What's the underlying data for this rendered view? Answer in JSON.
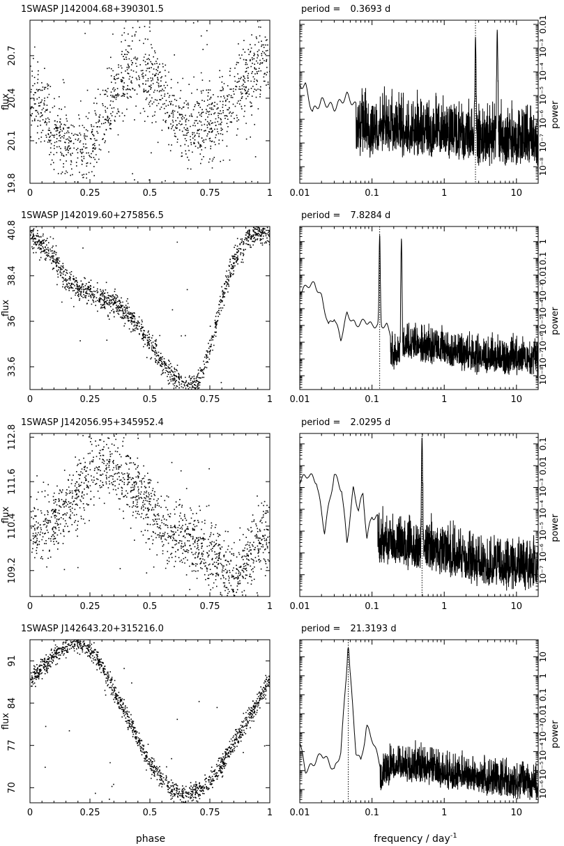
{
  "figure": {
    "x_label_left": "phase",
    "x_label_right": "frequency / day",
    "x_label_right_sup": "-1",
    "y_label_left": "flux",
    "y_label_right": "power",
    "period_prefix": "period ="
  },
  "chart_data": [
    {
      "type": "scatter",
      "id": "lc1",
      "title": "1SWASP J142004.68+390301.5",
      "xlabel": "phase",
      "ylabel": "flux",
      "xlim": [
        0,
        1
      ],
      "ylim": [
        19.8,
        20.95
      ],
      "x_ticks": [
        0,
        0.25,
        0.5,
        0.75,
        1
      ],
      "x_tick_labels": [
        "0",
        "0.25",
        "0.5",
        "0.75",
        "1"
      ],
      "y_ticks": [
        19.8,
        20.1,
        20.4,
        20.7
      ],
      "y_tick_labels": [
        "19.8",
        "20.1",
        "20.4",
        "20.7"
      ],
      "shape": "double",
      "trend": [
        [
          0,
          20.42
        ],
        [
          0.05,
          20.32
        ],
        [
          0.1,
          20.2
        ],
        [
          0.15,
          20.08
        ],
        [
          0.2,
          20.04
        ],
        [
          0.25,
          20.1
        ],
        [
          0.3,
          20.25
        ],
        [
          0.35,
          20.42
        ],
        [
          0.4,
          20.55
        ],
        [
          0.45,
          20.6
        ],
        [
          0.5,
          20.58
        ],
        [
          0.55,
          20.45
        ],
        [
          0.6,
          20.3
        ],
        [
          0.65,
          20.22
        ],
        [
          0.7,
          20.2
        ],
        [
          0.75,
          20.25
        ],
        [
          0.8,
          20.3
        ],
        [
          0.85,
          20.4
        ],
        [
          0.9,
          20.55
        ],
        [
          0.95,
          20.65
        ],
        [
          1,
          20.7
        ]
      ],
      "scatter_sigma": 0.14,
      "n_points": 1400
    },
    {
      "type": "line",
      "id": "ps1",
      "period_value": "0.3693 d",
      "xscale": "log",
      "yscale": "log",
      "xlim": [
        0.01,
        20
      ],
      "ylim": [
        2e-09,
        0.015
      ],
      "x_ticks": [
        0.01,
        0.1,
        1,
        10
      ],
      "x_tick_labels": [
        "0.01",
        "0.1",
        "1",
        "10"
      ],
      "y_ticks": [
        1e-08,
        1e-07,
        1e-06,
        1e-05,
        0.0001,
        0.001,
        0.01
      ],
      "y_tick_labels": [
        "10⁻⁸",
        "10⁻⁷",
        "10⁻⁶",
        "10⁻⁵",
        "10⁻⁴",
        "10⁻³",
        "0.01"
      ],
      "ylabel": "power",
      "marked_frequency": 2.708,
      "baseline": [
        [
          0.01,
          3e-05
        ],
        [
          0.012,
          2.5e-05
        ],
        [
          0.015,
          2e-06
        ],
        [
          0.02,
          6e-06
        ],
        [
          0.03,
          3e-06
        ],
        [
          0.045,
          1e-05
        ],
        [
          0.06,
          3.5e-06
        ],
        [
          0.08,
          8e-06
        ],
        [
          0.1,
          3e-06
        ],
        [
          0.15,
          6e-06
        ],
        [
          0.3,
          4e-06
        ],
        [
          1,
          4e-06
        ],
        [
          3,
          1.8e-06
        ],
        [
          10,
          1.5e-06
        ],
        [
          20,
          1.5e-06
        ]
      ],
      "peaks": [
        [
          2.708,
          0.003
        ],
        [
          5.42,
          0.006
        ]
      ],
      "noise_from": 0.06,
      "noise_depth": 2.5
    },
    {
      "type": "scatter",
      "id": "lc2",
      "title": "1SWASP J142019.60+275856.5",
      "xlabel": "phase",
      "ylabel": "flux",
      "xlim": [
        0,
        1
      ],
      "ylim": [
        32.4,
        41
      ],
      "x_ticks": [
        0,
        0.25,
        0.5,
        0.75,
        1
      ],
      "x_tick_labels": [
        "0",
        "0.25",
        "0.5",
        "0.75",
        "1"
      ],
      "y_ticks": [
        33.6,
        36,
        38.4,
        40.8
      ],
      "y_tick_labels": [
        "33.6",
        "36",
        "38.4",
        "40.8"
      ],
      "shape": "eclipse",
      "trend": [
        [
          0,
          40.6
        ],
        [
          0.05,
          40.0
        ],
        [
          0.1,
          39.3
        ],
        [
          0.15,
          38.2
        ],
        [
          0.2,
          37.6
        ],
        [
          0.25,
          37.5
        ],
        [
          0.3,
          37.2
        ],
        [
          0.35,
          37.0
        ],
        [
          0.4,
          36.5
        ],
        [
          0.45,
          35.8
        ],
        [
          0.5,
          34.8
        ],
        [
          0.55,
          33.8
        ],
        [
          0.6,
          33.1
        ],
        [
          0.65,
          32.6
        ],
        [
          0.7,
          32.8
        ],
        [
          0.75,
          34.6
        ],
        [
          0.8,
          37.3
        ],
        [
          0.85,
          39.3
        ],
        [
          0.9,
          40.4
        ],
        [
          0.95,
          40.8
        ],
        [
          1,
          40.7
        ]
      ],
      "scatter_sigma": 0.3,
      "n_points": 1400
    },
    {
      "type": "line",
      "id": "ps2",
      "period_value": "7.8284 d",
      "xscale": "log",
      "yscale": "log",
      "xlim": [
        0.01,
        20
      ],
      "ylim": [
        1.5e-09,
        8
      ],
      "x_ticks": [
        0.01,
        0.1,
        1,
        10
      ],
      "x_tick_labels": [
        "0.01",
        "0.1",
        "1",
        "10"
      ],
      "y_ticks": [
        1e-08,
        1e-07,
        1e-06,
        1e-05,
        0.0001,
        0.001,
        0.01,
        0.1,
        1
      ],
      "y_tick_labels": [
        "10⁻⁸",
        "10⁻⁷",
        "10⁻⁶",
        "10⁻⁵",
        "10⁻⁴",
        "10⁻³",
        "0.01",
        "0.1",
        "1"
      ],
      "ylabel": "power",
      "marked_frequency": 0.1277,
      "baseline": [
        [
          0.01,
          0.001
        ],
        [
          0.013,
          0.0025
        ],
        [
          0.016,
          0.003
        ],
        [
          0.02,
          0.0005
        ],
        [
          0.025,
          1e-05
        ],
        [
          0.03,
          3e-05
        ],
        [
          0.037,
          1.5e-06
        ],
        [
          0.045,
          5e-05
        ],
        [
          0.06,
          1e-05
        ],
        [
          0.08,
          2e-05
        ],
        [
          0.1,
          1e-05
        ],
        [
          0.16,
          1e-05
        ],
        [
          0.2,
          1e-06
        ],
        [
          0.3,
          8e-06
        ],
        [
          1,
          3e-06
        ],
        [
          3,
          1e-06
        ],
        [
          10,
          1e-06
        ],
        [
          20,
          1e-06
        ]
      ],
      "peaks": [
        [
          0.1277,
          2.5
        ],
        [
          0.2554,
          1.5
        ]
      ],
      "noise_from": 0.18,
      "noise_depth": 2.2
    },
    {
      "type": "scatter",
      "id": "lc3",
      "title": "1SWASP J142056.95+345952.4",
      "xlabel": "phase",
      "ylabel": "flux",
      "xlim": [
        0,
        1
      ],
      "ylim": [
        108.5,
        112.9
      ],
      "x_ticks": [
        0,
        0.25,
        0.5,
        0.75,
        1
      ],
      "x_tick_labels": [
        "0",
        "0.25",
        "0.5",
        "0.75",
        "1"
      ],
      "y_ticks": [
        109.2,
        110.4,
        111.6,
        112.8
      ],
      "y_tick_labels": [
        "109.2",
        "110.4",
        "111.6",
        "112.8"
      ],
      "shape": "double",
      "trend": [
        [
          0,
          110.3
        ],
        [
          0.05,
          110.3
        ],
        [
          0.1,
          110.5
        ],
        [
          0.15,
          110.9
        ],
        [
          0.2,
          111.4
        ],
        [
          0.25,
          111.8
        ],
        [
          0.3,
          112.0
        ],
        [
          0.35,
          112.0
        ],
        [
          0.4,
          111.7
        ],
        [
          0.45,
          111.3
        ],
        [
          0.5,
          110.9
        ],
        [
          0.55,
          110.4
        ],
        [
          0.6,
          110.1
        ],
        [
          0.65,
          110.0
        ],
        [
          0.7,
          109.9
        ],
        [
          0.75,
          109.7
        ],
        [
          0.8,
          109.3
        ],
        [
          0.85,
          109.0
        ],
        [
          0.9,
          109.5
        ],
        [
          0.95,
          110.0
        ],
        [
          1,
          110.3
        ]
      ],
      "scatter_sigma": 0.45,
      "n_points": 1500
    },
    {
      "type": "line",
      "id": "ps3",
      "period_value": "2.0295 d",
      "xscale": "log",
      "yscale": "log",
      "xlim": [
        0.01,
        20
      ],
      "ylim": [
        1e-08,
        0.3
      ],
      "x_ticks": [
        0.01,
        0.1,
        1,
        10
      ],
      "x_tick_labels": [
        "0.01",
        "0.1",
        "1",
        "10"
      ],
      "y_ticks": [
        1e-07,
        1e-06,
        1e-05,
        0.0001,
        0.001,
        0.01,
        0.1
      ],
      "y_tick_labels": [
        "10⁻⁷",
        "10⁻⁶",
        "10⁻⁵",
        "10⁻⁴",
        "10⁻³",
        "0.01",
        "0.1"
      ],
      "ylabel": "power",
      "marked_frequency": 0.4927,
      "baseline": [
        [
          0.01,
          0.002
        ],
        [
          0.013,
          0.004
        ],
        [
          0.017,
          0.002
        ],
        [
          0.022,
          1e-05
        ],
        [
          0.03,
          0.004
        ],
        [
          0.038,
          0.0008
        ],
        [
          0.045,
          3e-06
        ],
        [
          0.055,
          0.0008
        ],
        [
          0.065,
          0.0001
        ],
        [
          0.075,
          0.0005
        ],
        [
          0.085,
          5e-06
        ],
        [
          0.1,
          5e-05
        ],
        [
          0.15,
          3e-05
        ],
        [
          0.3,
          2e-05
        ],
        [
          1,
          1e-05
        ],
        [
          3,
          3e-06
        ],
        [
          10,
          2e-06
        ],
        [
          20,
          2e-06
        ]
      ],
      "peaks": [
        [
          0.4927,
          0.2
        ]
      ],
      "noise_from": 0.12,
      "noise_depth": 2.3
    },
    {
      "type": "scatter",
      "id": "lc4",
      "title": "1SWASP J142643.20+315216.0",
      "xlabel": "phase",
      "ylabel": "flux",
      "xlim": [
        0,
        1
      ],
      "ylim": [
        67.5,
        94.5
      ],
      "x_ticks": [
        0,
        0.25,
        0.5,
        0.75,
        1
      ],
      "x_tick_labels": [
        "0",
        "0.25",
        "0.5",
        "0.75",
        "1"
      ],
      "y_ticks": [
        70,
        77,
        84,
        91
      ],
      "y_tick_labels": [
        "70",
        "77",
        "84",
        "91"
      ],
      "shape": "sine",
      "trend": [
        [
          0,
          88
        ],
        [
          0.05,
          90
        ],
        [
          0.1,
          92
        ],
        [
          0.15,
          93.5
        ],
        [
          0.2,
          94
        ],
        [
          0.25,
          93
        ],
        [
          0.3,
          90
        ],
        [
          0.35,
          86
        ],
        [
          0.4,
          82
        ],
        [
          0.45,
          78
        ],
        [
          0.5,
          74
        ],
        [
          0.55,
          71.5
        ],
        [
          0.6,
          69.5
        ],
        [
          0.65,
          69
        ],
        [
          0.7,
          69.5
        ],
        [
          0.75,
          71
        ],
        [
          0.8,
          74
        ],
        [
          0.85,
          77.5
        ],
        [
          0.9,
          81
        ],
        [
          0.95,
          84.5
        ],
        [
          1,
          88
        ]
      ],
      "scatter_sigma": 0.8,
      "n_points": 1400
    },
    {
      "type": "line",
      "id": "ps4",
      "period_value": "21.3193 d",
      "xscale": "log",
      "yscale": "log",
      "xlim": [
        0.01,
        20
      ],
      "ylim": [
        2e-07,
        80
      ],
      "x_ticks": [
        0.01,
        0.1,
        1,
        10
      ],
      "x_tick_labels": [
        "0.01",
        "0.1",
        "1",
        "10"
      ],
      "y_ticks": [
        1e-06,
        1e-05,
        0.0001,
        0.001,
        0.01,
        0.1,
        1,
        10
      ],
      "y_tick_labels": [
        "10⁻⁶",
        "10⁻⁵",
        "10⁻⁴",
        "10⁻³",
        "0.01",
        "0.1",
        "1",
        "10"
      ],
      "ylabel": "power",
      "marked_frequency": 0.0469,
      "baseline": [
        [
          0.01,
          0.0003
        ],
        [
          0.012,
          1e-05
        ],
        [
          0.015,
          2e-05
        ],
        [
          0.02,
          8e-05
        ],
        [
          0.025,
          3e-05
        ],
        [
          0.03,
          1e-05
        ],
        [
          0.037,
          0.0001
        ],
        [
          0.0469,
          30
        ],
        [
          0.06,
          0.0001
        ],
        [
          0.07,
          3e-05
        ],
        [
          0.085,
          0.002
        ],
        [
          0.1,
          0.0005
        ],
        [
          0.13,
          2e-05
        ],
        [
          0.2,
          0.0001
        ],
        [
          0.5,
          7e-05
        ],
        [
          1,
          4e-05
        ],
        [
          3,
          2e-05
        ],
        [
          10,
          1e-05
        ],
        [
          20,
          1e-05
        ]
      ],
      "peaks": [
        [
          0.0469,
          30
        ],
        [
          0.085,
          0.002
        ]
      ],
      "noise_from": 0.13,
      "noise_depth": 1.8
    }
  ]
}
